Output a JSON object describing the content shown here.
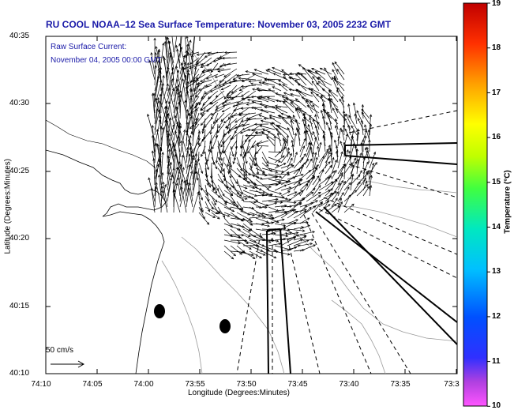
{
  "title": "RU COOL  NOAA–12  Sea Surface Temperature:  November 03, 2005 2232 GMT",
  "legend": {
    "line1": "Raw Surface Current:",
    "line2": "November 04, 2005 00:00 GMT"
  },
  "scale_label": "50 cm/s",
  "axes": {
    "xlabel": "Longitude (Degrees:Minutes)",
    "ylabel": "Latitude (Degrees:Minutes)",
    "xticks": [
      "74:10",
      "74:05",
      "74:00",
      "73:55",
      "73:50",
      "73:45",
      "73:40",
      "73:35",
      "73:3"
    ],
    "yticks": [
      "40:35",
      "40:30",
      "40:25",
      "40:20",
      "40:15",
      "40:10"
    ]
  },
  "colorbar": {
    "label": "Temperature (°C)",
    "ticks": [
      "19",
      "18",
      "17",
      "16",
      "15",
      "14",
      "13",
      "12",
      "11",
      "10"
    ],
    "min": 10,
    "max": 19
  },
  "colors": {
    "title": "#1a1aa8",
    "vectors": "#000000",
    "contours": "#9a9a9a"
  }
}
